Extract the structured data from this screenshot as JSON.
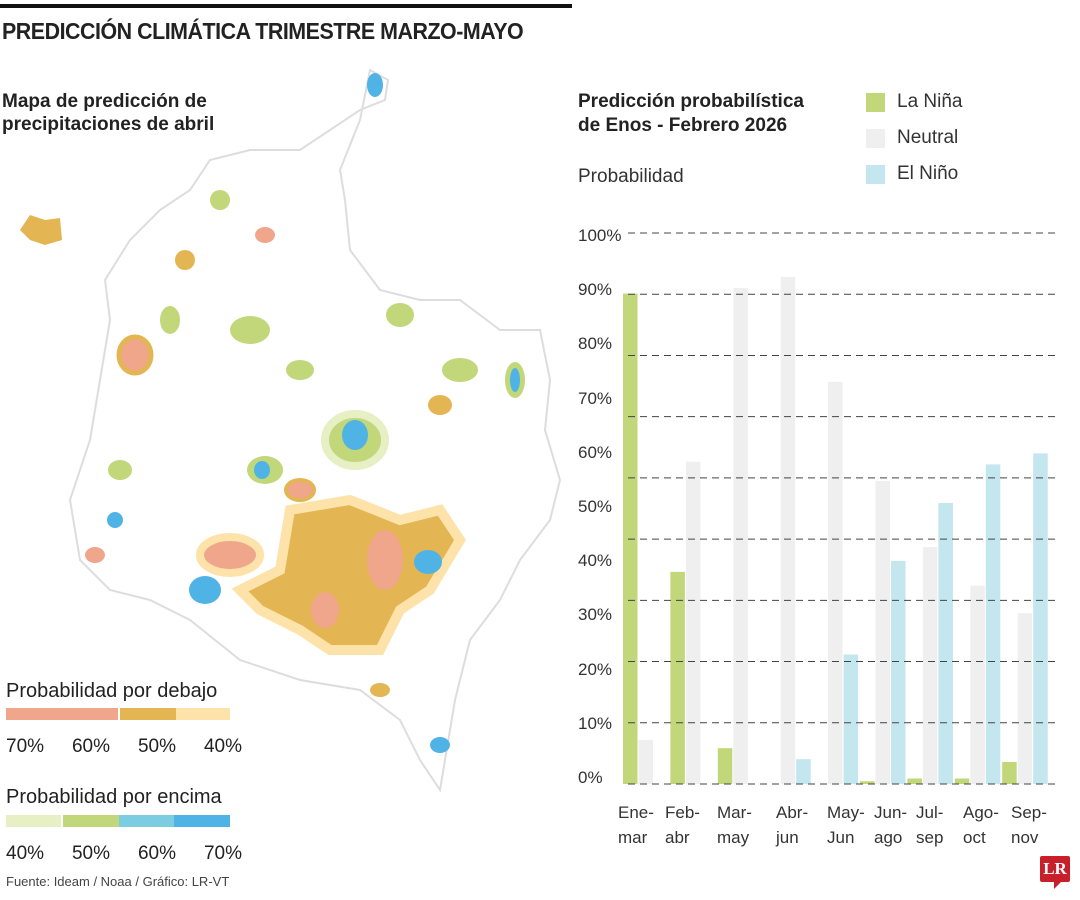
{
  "header": {
    "title": "PREDICCIÓN CLIMÁTICA TRIMESTRE MARZO-MAYO"
  },
  "map": {
    "title": "Mapa de predicción de precipitaciones de abril",
    "legend_below": {
      "title": "Probabilidad por debajo",
      "labels": [
        "70%",
        "60%",
        "50%",
        "40%"
      ],
      "colors": [
        "#f0a68a",
        "#e3b553",
        "#fde3aa"
      ]
    },
    "legend_above": {
      "title": "Probabilidad por encima",
      "labels": [
        "40%",
        "50%",
        "60%",
        "70%"
      ],
      "colors": [
        "#e7efc4",
        "#c2d67a",
        "#7ccde0",
        "#4fb3e6"
      ]
    }
  },
  "source": "Fuente: Ideam / Noaa / Gráfico: LR-VT",
  "logo": "LR",
  "chart_data": {
    "type": "bar",
    "title": "Predicción probabilística de Enos - Febrero 2026",
    "ylabel": "Probabilidad",
    "ylim": [
      0,
      100
    ],
    "yticks": [
      "100%",
      "90%",
      "80%",
      "70%",
      "60%",
      "50%",
      "40%",
      "30%",
      "20%",
      "10%",
      "0%"
    ],
    "grid": true,
    "legend_placement": "top-right",
    "categories": [
      [
        "Ene-",
        "mar"
      ],
      [
        "Feb-",
        "abr"
      ],
      [
        "Mar-",
        "may"
      ],
      [
        "Abr-",
        "jun"
      ],
      [
        "May-",
        "Jun"
      ],
      [
        "Jun-",
        "ago"
      ],
      [
        "Jul-",
        "sep"
      ],
      [
        "Ago-",
        "oct"
      ],
      [
        "Sep-",
        "nov"
      ]
    ],
    "series": [
      {
        "name": "La Niña",
        "color": "#c2d67a",
        "values": [
          89,
          38.5,
          6.5,
          0,
          0,
          0.5,
          1,
          1,
          4
        ]
      },
      {
        "name": "Neutral",
        "color": "#efefef",
        "values": [
          8,
          58.5,
          90,
          92,
          73,
          55,
          43,
          36,
          31
        ]
      },
      {
        "name": "El Niño",
        "color": "#c3e6ef",
        "values": [
          0,
          0,
          0,
          4.5,
          23.5,
          40.5,
          51,
          58,
          60
        ]
      }
    ]
  }
}
